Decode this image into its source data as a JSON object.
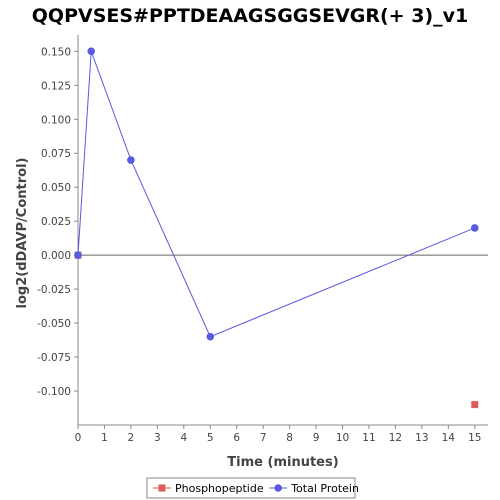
{
  "chart_data": {
    "type": "scatter",
    "title": "QQPVSES#PPTDEAAGSGGSEVGR(+ 3)_v1",
    "xlabel": "Time (minutes)",
    "ylabel": "log2(dDAVP/Control)",
    "xlim": [
      0,
      15.5
    ],
    "ylim": [
      -0.125,
      0.162
    ],
    "xticks": [
      "0",
      "1",
      "2",
      "3",
      "4",
      "5",
      "6",
      "7",
      "8",
      "9",
      "10",
      "11",
      "12",
      "13",
      "14",
      "15"
    ],
    "yticks": [
      "0.150",
      "0.125",
      "0.100",
      "0.075",
      "0.050",
      "0.025",
      "0.000",
      "-0.025",
      "-0.050",
      "-0.075",
      "-0.100"
    ],
    "grid": false,
    "zero_line": true,
    "legend_placement": "bottom",
    "series": [
      {
        "name": "Phosphopeptide",
        "color": "#e05a5a",
        "marker": "square",
        "line": false,
        "x": [
          0,
          15
        ],
        "y": [
          0.0,
          -0.11
        ]
      },
      {
        "name": "Total Protein",
        "color": "#5a5ae0",
        "marker": "circle",
        "line": true,
        "x": [
          0,
          0.5,
          2,
          5,
          15
        ],
        "y": [
          0.0,
          0.15,
          0.07,
          -0.06,
          0.02
        ]
      }
    ]
  }
}
